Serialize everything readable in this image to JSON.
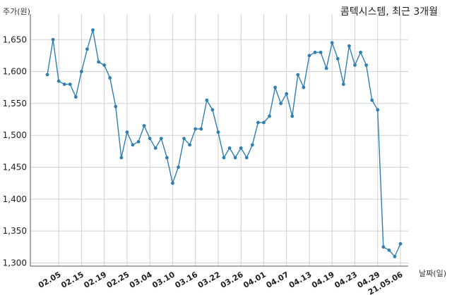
{
  "chart_data": {
    "type": "line",
    "title": "콤텍시스템, 최근 3개월",
    "ylabel": "주가(원)",
    "xlabel": "날짜(일)",
    "ylim": [
      1295,
      1690
    ],
    "yticks": [
      1300,
      1350,
      1400,
      1450,
      1500,
      1550,
      1600,
      1650
    ],
    "ytick_labels": [
      "1,300",
      "1,350",
      "1,400",
      "1,450",
      "1,500",
      "1,550",
      "1,600",
      "1,650"
    ],
    "xtick_labels": [
      "02.05",
      "02.15",
      "02.19",
      "02.25",
      "03.04",
      "03.10",
      "03.16",
      "03.22",
      "03.26",
      "04.01",
      "04.07",
      "04.13",
      "04.19",
      "04.23",
      "04.29",
      "21.05.06"
    ],
    "xtick_index": [
      2,
      6,
      10,
      14,
      18,
      22,
      26,
      30,
      34,
      38,
      42,
      46,
      50,
      54,
      58,
      62
    ],
    "grid": true,
    "color": "#2f7fb0",
    "series": [
      {
        "values": [
          1595,
          1650,
          1585,
          1580,
          1580,
          1560,
          1600,
          1635,
          1665,
          1615,
          1610,
          1590,
          1545,
          1465,
          1505,
          1485,
          1490,
          1515,
          1495,
          1480,
          1495,
          1465,
          1425,
          1450,
          1495,
          1485,
          1510,
          1510,
          1555,
          1540,
          1505,
          1465,
          1480,
          1465,
          1480,
          1465,
          1485,
          1520,
          1520,
          1530,
          1575,
          1550,
          1565,
          1530,
          1595,
          1575,
          1625,
          1630,
          1630,
          1605,
          1645,
          1620,
          1580,
          1640,
          1610,
          1630,
          1610,
          1555,
          1540,
          1325,
          1320,
          1310,
          1330
        ]
      }
    ]
  }
}
